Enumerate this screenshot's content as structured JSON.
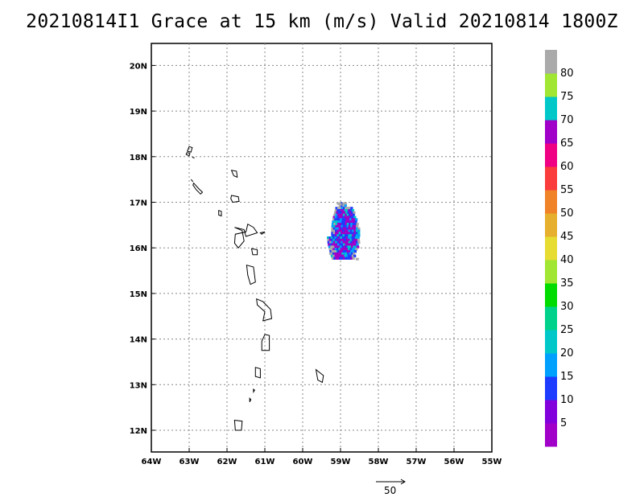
{
  "title": "20210814I1 Grace at 15 km (m/s) Valid 20210814 1800Z",
  "map": {
    "lon_range": [
      -64,
      -55
    ],
    "lat_range": [
      11.5,
      20.5
    ],
    "x_ticks": [
      {
        "lon": -64,
        "label": "64W"
      },
      {
        "lon": -63,
        "label": "63W"
      },
      {
        "lon": -62,
        "label": "62W"
      },
      {
        "lon": -61,
        "label": "61W"
      },
      {
        "lon": -60,
        "label": "60W"
      },
      {
        "lon": -59,
        "label": "59W"
      },
      {
        "lon": -58,
        "label": "58W"
      },
      {
        "lon": -57,
        "label": "57W"
      },
      {
        "lon": -56,
        "label": "56W"
      },
      {
        "lon": -55,
        "label": "55W"
      }
    ],
    "y_ticks": [
      {
        "lat": 12,
        "label": "12N"
      },
      {
        "lat": 13,
        "label": "13N"
      },
      {
        "lat": 14,
        "label": "14N"
      },
      {
        "lat": 15,
        "label": "15N"
      },
      {
        "lat": 16,
        "label": "16N"
      },
      {
        "lat": 17,
        "label": "17N"
      },
      {
        "lat": 18,
        "label": "18N"
      },
      {
        "lat": 19,
        "label": "19N"
      },
      {
        "lat": 20,
        "label": "20N"
      }
    ],
    "grid": true,
    "grid_style": "dotted"
  },
  "colorbar": {
    "labels": [
      "5",
      "10",
      "15",
      "20",
      "25",
      "30",
      "35",
      "40",
      "45",
      "50",
      "55",
      "60",
      "65",
      "70",
      "75",
      "80"
    ],
    "colors": [
      "#a000c8",
      "#8200dc",
      "#1e3cff",
      "#00a0ff",
      "#00c8c8",
      "#00d28c",
      "#00dc00",
      "#a0e632",
      "#e6dc32",
      "#e6af2d",
      "#f08228",
      "#fa3c3c",
      "#f00082",
      "#a000c8",
      "#00c8c8",
      "#a0e632",
      "#aaaaaa"
    ]
  },
  "vector_reference": {
    "label": "50",
    "color": "#000000"
  },
  "wind_swath": {
    "center_lon": -58.85,
    "center_lat": 16.3,
    "dominant_colors": [
      "#a000c8",
      "#1e3cff",
      "#00a0ff",
      "#00c8c8",
      "#aaaaaa"
    ]
  }
}
